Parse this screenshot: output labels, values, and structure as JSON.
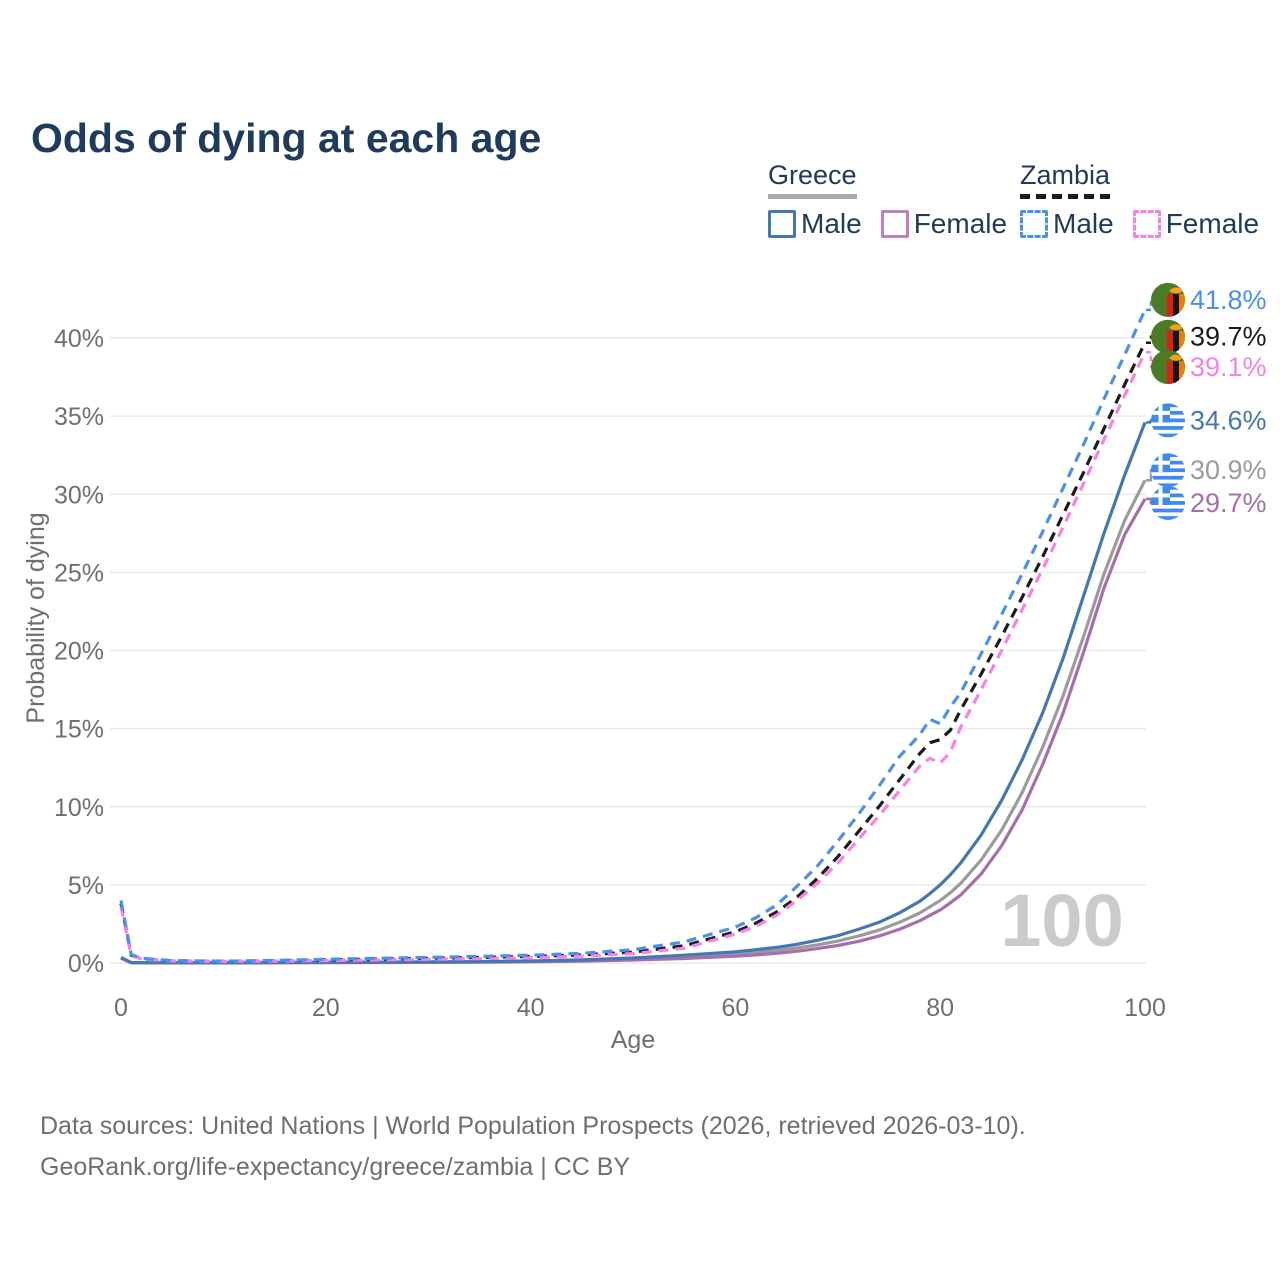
{
  "title": "Odds of dying at each age",
  "legend": {
    "groups": [
      {
        "country": "Greece",
        "line_style": "solid",
        "underline_color": "#a9a9a9",
        "items": [
          {
            "label": "Male",
            "color": "#4477b5"
          },
          {
            "label": "Female",
            "color": "#c07fc0"
          }
        ]
      },
      {
        "country": "Zambia",
        "line_style": "dashed",
        "underline_color": "#1b1b1b",
        "items": [
          {
            "label": "Male",
            "color": "#4a8ff2"
          },
          {
            "label": "Female",
            "color": "#fb80e3"
          }
        ]
      }
    ]
  },
  "footer": {
    "line1": "Data sources: United Nations | World Population Prospects (2026, retrieved 2026-03-10).",
    "line2": "GeoRank.org/life-expectancy/greece/zambia | CC BY"
  },
  "colors": {
    "title_navy": "#1e3a5c",
    "tick_gray": "#6f6f6f",
    "grid_gray": "#e9e9e9",
    "watermark_gray": "#cbcbcb",
    "zambia_flag_green": "#4b7b27",
    "zambia_flag_red": "#de2010",
    "zambia_flag_black": "#141414",
    "zambia_flag_orange": "#ef7d00",
    "zambia_flag_eagle": "#f9a11b",
    "greece_flag_blue": "#3d8af2"
  },
  "chart_data": {
    "type": "line",
    "title": "Odds of dying at each age",
    "xlabel": "Age",
    "ylabel": "Probability of dying",
    "xlim": [
      0,
      100
    ],
    "ylim_percent": [
      0,
      43
    ],
    "grid": "horizontal",
    "legend_position": "top-right",
    "watermark_age": "100",
    "x_ticks": [
      0,
      20,
      40,
      60,
      80,
      100
    ],
    "x_tick_labels": [
      "0",
      "20",
      "40",
      "60",
      "80",
      "100"
    ],
    "y_ticks_percent": [
      0,
      5,
      10,
      15,
      20,
      25,
      30,
      35,
      40
    ],
    "y_tick_labels": [
      "0%",
      "5%",
      "10%",
      "15%",
      "20%",
      "25%",
      "30%",
      "35%",
      "40%"
    ],
    "x": [
      0,
      1,
      2,
      5,
      10,
      15,
      20,
      25,
      30,
      35,
      40,
      45,
      50,
      55,
      60,
      62,
      64,
      66,
      68,
      70,
      72,
      74,
      76,
      78,
      79,
      80,
      81,
      82,
      84,
      86,
      88,
      90,
      92,
      94,
      96,
      98,
      100
    ],
    "series": [
      {
        "id": "zambia-male",
        "name": "Zambia Male",
        "country": "Zambia",
        "sex": "Male",
        "color": "#4a8ff2",
        "dashed": true,
        "flag": "zambia",
        "end_label": "41.8%",
        "end_value_percent": 41.8,
        "values": [
          4.0,
          0.55,
          0.3,
          0.15,
          0.12,
          0.16,
          0.24,
          0.3,
          0.36,
          0.42,
          0.5,
          0.62,
          0.85,
          1.35,
          2.3,
          2.9,
          3.7,
          4.9,
          6.2,
          7.8,
          9.5,
          11.3,
          13.2,
          14.6,
          15.6,
          15.3,
          16.4,
          17.3,
          19.8,
          22.3,
          24.9,
          27.6,
          30.4,
          33.2,
          36.1,
          38.9,
          41.8
        ]
      },
      {
        "id": "zambia-both",
        "name": "Zambia (both sexes)",
        "country": "Zambia",
        "sex": "Both",
        "color": "#1b1b1b",
        "dashed": true,
        "flag": "zambia",
        "end_label": "39.7%",
        "end_value_percent": 39.7,
        "values": [
          3.8,
          0.5,
          0.28,
          0.14,
          0.11,
          0.14,
          0.2,
          0.25,
          0.3,
          0.35,
          0.42,
          0.52,
          0.7,
          1.1,
          2.0,
          2.55,
          3.25,
          4.2,
          5.4,
          6.8,
          8.4,
          10.0,
          11.7,
          13.4,
          14.1,
          14.3,
          14.9,
          16.2,
          18.5,
          20.9,
          23.4,
          26.0,
          28.7,
          31.4,
          34.2,
          37.0,
          39.7
        ]
      },
      {
        "id": "zambia-female",
        "name": "Zambia Female",
        "country": "Zambia",
        "sex": "Female",
        "color": "#fb80e3",
        "dashed": true,
        "flag": "zambia",
        "end_label": "39.1%",
        "end_value_percent": 39.1,
        "values": [
          3.6,
          0.48,
          0.26,
          0.13,
          0.1,
          0.12,
          0.16,
          0.2,
          0.24,
          0.28,
          0.34,
          0.44,
          0.6,
          0.95,
          1.85,
          2.35,
          3.05,
          4.0,
          5.1,
          6.4,
          7.9,
          9.4,
          11.0,
          12.6,
          13.1,
          12.8,
          13.5,
          15.1,
          17.5,
          20.0,
          22.6,
          25.2,
          27.9,
          30.7,
          33.5,
          36.3,
          39.1
        ]
      },
      {
        "id": "greece-male",
        "name": "Greece Male",
        "country": "Greece",
        "sex": "Male",
        "color": "#4477b5",
        "dashed": false,
        "flag": "greece",
        "end_label": "34.6%",
        "end_value_percent": 34.6,
        "values": [
          0.35,
          0.03,
          0.02,
          0.01,
          0.01,
          0.03,
          0.05,
          0.06,
          0.07,
          0.09,
          0.13,
          0.2,
          0.32,
          0.5,
          0.72,
          0.85,
          1.0,
          1.2,
          1.45,
          1.75,
          2.15,
          2.6,
          3.2,
          3.95,
          4.45,
          5.0,
          5.65,
          6.4,
          8.2,
          10.4,
          13.0,
          16.0,
          19.5,
          23.5,
          27.5,
          31.2,
          34.6
        ]
      },
      {
        "id": "greece-both",
        "name": "Greece (both sexes)",
        "country": "Greece",
        "sex": "Both",
        "color": "#9b9b9b",
        "dashed": false,
        "flag": "greece",
        "end_label": "30.9%",
        "end_value_percent": 30.9,
        "values": [
          0.32,
          0.025,
          0.018,
          0.01,
          0.008,
          0.02,
          0.035,
          0.045,
          0.055,
          0.07,
          0.1,
          0.16,
          0.25,
          0.39,
          0.58,
          0.68,
          0.8,
          0.96,
          1.16,
          1.4,
          1.72,
          2.1,
          2.6,
          3.2,
          3.6,
          4.0,
          4.5,
          5.1,
          6.6,
          8.5,
          10.9,
          13.8,
          17.1,
          20.9,
          24.9,
          28.3,
          30.9
        ]
      },
      {
        "id": "greece-female",
        "name": "Greece Female",
        "country": "Greece",
        "sex": "Female",
        "color": "#a76fa9",
        "dashed": false,
        "flag": "greece",
        "end_label": "29.7%",
        "end_value_percent": 29.7,
        "values": [
          0.3,
          0.02,
          0.015,
          0.008,
          0.007,
          0.015,
          0.025,
          0.03,
          0.04,
          0.05,
          0.08,
          0.12,
          0.19,
          0.29,
          0.44,
          0.52,
          0.62,
          0.75,
          0.92,
          1.12,
          1.38,
          1.72,
          2.15,
          2.7,
          3.05,
          3.4,
          3.85,
          4.35,
          5.7,
          7.5,
          9.8,
          12.7,
          16.0,
          19.9,
          24.0,
          27.4,
          29.7
        ]
      }
    ]
  }
}
